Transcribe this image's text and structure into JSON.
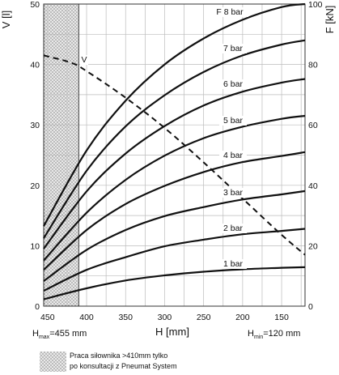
{
  "chart_data": {
    "type": "line",
    "y_left_label": "V [l]",
    "y_right_label": "F [kN]",
    "xlabel": "H [mm]",
    "xlim": [
      455,
      120
    ],
    "x_ticks": [
      450,
      400,
      350,
      300,
      250,
      200,
      150
    ],
    "y_left_lim": [
      0,
      50
    ],
    "y_left_ticks": [
      0,
      10,
      20,
      30,
      40,
      50
    ],
    "y_right_lim": [
      0,
      100
    ],
    "y_right_ticks": [
      0,
      20,
      40,
      60,
      80,
      100
    ],
    "grid": true,
    "hmax_label": "H",
    "hmax_sub": "max",
    "hmax_value": "=455 mm",
    "hmin_label": "H",
    "hmin_sub": "min",
    "hmin_value": "=120 mm",
    "hatched_region": [
      455,
      410
    ],
    "divider_line_x": 410,
    "series": [
      {
        "name": "1 bar",
        "axis": "F",
        "x": [
          455,
          400,
          350,
          300,
          250,
          200,
          150,
          120
        ],
        "values": [
          2.3,
          5.9,
          8.5,
          10.2,
          11.4,
          12.2,
          12.7,
          12.9
        ]
      },
      {
        "name": "2 bar",
        "axis": "F",
        "x": [
          455,
          400,
          350,
          300,
          250,
          200,
          150,
          120
        ],
        "values": [
          5.1,
          12.0,
          16.2,
          19.8,
          22.0,
          23.8,
          24.9,
          25.6
        ]
      },
      {
        "name": "3 bar",
        "axis": "F",
        "x": [
          455,
          400,
          350,
          300,
          250,
          200,
          150,
          120
        ],
        "values": [
          8.3,
          18.6,
          25.2,
          29.8,
          32.8,
          35.3,
          37.0,
          38.1
        ]
      },
      {
        "name": "4 bar",
        "axis": "F",
        "x": [
          455,
          400,
          350,
          300,
          250,
          200,
          150,
          120
        ],
        "values": [
          12.0,
          25.2,
          33.8,
          39.8,
          44.4,
          47.7,
          49.7,
          51.0
        ]
      },
      {
        "name": "5 bar",
        "axis": "F",
        "x": [
          455,
          400,
          350,
          300,
          250,
          200,
          150,
          120
        ],
        "values": [
          15.1,
          30.9,
          41.8,
          49.8,
          55.6,
          59.4,
          62.0,
          63.0
        ]
      },
      {
        "name": "6 bar",
        "axis": "F",
        "x": [
          455,
          400,
          350,
          300,
          250,
          200,
          150,
          120
        ],
        "values": [
          19.0,
          38.0,
          50.5,
          59.6,
          66.4,
          71.0,
          74.0,
          75.2
        ]
      },
      {
        "name": "7 bar",
        "axis": "F",
        "x": [
          455,
          400,
          350,
          300,
          250,
          200,
          150,
          120
        ],
        "values": [
          22.5,
          44.8,
          59.5,
          69.8,
          77.5,
          83.0,
          86.6,
          88.0
        ]
      },
      {
        "name": "F 8 bar",
        "axis": "F",
        "x": [
          455,
          400,
          350,
          300,
          250,
          200,
          150,
          120
        ],
        "values": [
          26.5,
          51.5,
          68.0,
          80.0,
          88.6,
          94.8,
          99.0,
          100.0
        ]
      },
      {
        "name": "V",
        "axis": "V",
        "dashed": true,
        "x": [
          455,
          420,
          400,
          350,
          300,
          250,
          200,
          150,
          120
        ],
        "values": [
          41.5,
          40.3,
          38.9,
          34.5,
          29.5,
          23.8,
          17.8,
          11.8,
          8.5
        ]
      }
    ]
  },
  "legend_note": {
    "line1": "Praca siłownika >410mm tylko",
    "line2": "po konsultacji z Pneumat System"
  }
}
